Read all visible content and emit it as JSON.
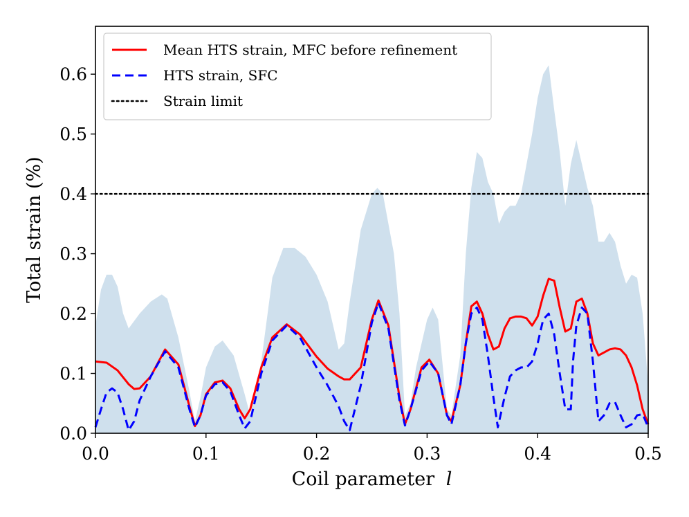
{
  "chart_data": {
    "type": "line",
    "title": "",
    "xlabel": "Coil parameter",
    "xlabel_var": "l",
    "ylabel": "Total strain (%)",
    "xlim": [
      0.0,
      0.5
    ],
    "ylim": [
      0.0,
      0.68
    ],
    "xticks": [
      0.0,
      0.1,
      0.2,
      0.3,
      0.4,
      0.5
    ],
    "xtick_labels": [
      "0.0",
      "0.1",
      "0.2",
      "0.3",
      "0.4",
      "0.5"
    ],
    "yticks": [
      0.0,
      0.1,
      0.2,
      0.3,
      0.4,
      0.5,
      0.6
    ],
    "ytick_labels": [
      "0.0",
      "0.1",
      "0.2",
      "0.3",
      "0.4",
      "0.5",
      "0.6"
    ],
    "grid": false,
    "legend_position": "top-left",
    "series": [
      {
        "name": "Mean HTS strain, MFC before refinement",
        "style": "solid",
        "color": "#ff0000",
        "x": [
          0.0,
          0.01,
          0.02,
          0.03,
          0.035,
          0.04,
          0.05,
          0.063,
          0.075,
          0.085,
          0.09,
          0.095,
          0.1,
          0.108,
          0.115,
          0.122,
          0.13,
          0.135,
          0.14,
          0.15,
          0.16,
          0.173,
          0.185,
          0.2,
          0.21,
          0.22,
          0.225,
          0.23,
          0.24,
          0.25,
          0.256,
          0.265,
          0.275,
          0.28,
          0.285,
          0.295,
          0.302,
          0.31,
          0.318,
          0.322,
          0.33,
          0.335,
          0.34,
          0.345,
          0.35,
          0.355,
          0.36,
          0.365,
          0.37,
          0.375,
          0.38,
          0.385,
          0.39,
          0.395,
          0.4,
          0.405,
          0.41,
          0.415,
          0.42,
          0.425,
          0.43,
          0.435,
          0.44,
          0.445,
          0.45,
          0.455,
          0.46,
          0.465,
          0.47,
          0.475,
          0.48,
          0.485,
          0.49,
          0.495,
          0.5
        ],
        "y": [
          0.12,
          0.118,
          0.105,
          0.082,
          0.074,
          0.075,
          0.095,
          0.14,
          0.115,
          0.045,
          0.012,
          0.03,
          0.065,
          0.085,
          0.088,
          0.075,
          0.04,
          0.025,
          0.04,
          0.11,
          0.16,
          0.182,
          0.165,
          0.128,
          0.108,
          0.095,
          0.09,
          0.09,
          0.11,
          0.19,
          0.222,
          0.18,
          0.06,
          0.015,
          0.04,
          0.11,
          0.123,
          0.1,
          0.03,
          0.02,
          0.08,
          0.15,
          0.212,
          0.22,
          0.2,
          0.165,
          0.14,
          0.145,
          0.175,
          0.192,
          0.195,
          0.195,
          0.192,
          0.18,
          0.195,
          0.23,
          0.258,
          0.255,
          0.21,
          0.17,
          0.175,
          0.22,
          0.225,
          0.2,
          0.15,
          0.13,
          0.135,
          0.14,
          0.142,
          0.14,
          0.13,
          0.11,
          0.08,
          0.04,
          0.015
        ]
      },
      {
        "name": "HTS strain, SFC",
        "style": "dashed",
        "color": "#0000ff",
        "x": [
          0.0,
          0.005,
          0.01,
          0.015,
          0.02,
          0.025,
          0.03,
          0.035,
          0.04,
          0.05,
          0.063,
          0.075,
          0.085,
          0.09,
          0.095,
          0.1,
          0.108,
          0.115,
          0.122,
          0.13,
          0.135,
          0.14,
          0.15,
          0.16,
          0.173,
          0.185,
          0.2,
          0.21,
          0.22,
          0.225,
          0.23,
          0.24,
          0.25,
          0.256,
          0.265,
          0.275,
          0.28,
          0.285,
          0.295,
          0.302,
          0.31,
          0.318,
          0.322,
          0.33,
          0.335,
          0.34,
          0.345,
          0.35,
          0.355,
          0.36,
          0.364,
          0.37,
          0.375,
          0.38,
          0.385,
          0.39,
          0.395,
          0.4,
          0.405,
          0.41,
          0.415,
          0.42,
          0.425,
          0.43,
          0.432,
          0.435,
          0.44,
          0.445,
          0.45,
          0.455,
          0.46,
          0.465,
          0.47,
          0.475,
          0.48,
          0.485,
          0.49,
          0.495,
          0.5
        ],
        "y": [
          0.01,
          0.04,
          0.068,
          0.075,
          0.068,
          0.04,
          0.005,
          0.02,
          0.055,
          0.095,
          0.137,
          0.11,
          0.04,
          0.01,
          0.03,
          0.063,
          0.082,
          0.085,
          0.07,
          0.03,
          0.008,
          0.02,
          0.1,
          0.155,
          0.18,
          0.16,
          0.11,
          0.08,
          0.045,
          0.02,
          0.005,
          0.08,
          0.185,
          0.218,
          0.175,
          0.055,
          0.013,
          0.04,
          0.105,
          0.12,
          0.1,
          0.03,
          0.015,
          0.08,
          0.15,
          0.2,
          0.21,
          0.19,
          0.13,
          0.06,
          0.01,
          0.06,
          0.095,
          0.105,
          0.11,
          0.11,
          0.12,
          0.15,
          0.19,
          0.2,
          0.165,
          0.1,
          0.04,
          0.04,
          0.12,
          0.18,
          0.21,
          0.2,
          0.12,
          0.02,
          0.03,
          0.05,
          0.052,
          0.03,
          0.01,
          0.015,
          0.03,
          0.032,
          0.01
        ]
      },
      {
        "name": "Strain limit",
        "style": "dotted",
        "color": "#000000",
        "x": [
          0.0,
          0.5
        ],
        "y": [
          0.4,
          0.4
        ]
      }
    ],
    "band": {
      "name": "spread",
      "color": "#cfe0ed",
      "x": [
        0.0,
        0.005,
        0.01,
        0.015,
        0.02,
        0.025,
        0.03,
        0.04,
        0.05,
        0.06,
        0.065,
        0.075,
        0.085,
        0.09,
        0.095,
        0.1,
        0.108,
        0.115,
        0.125,
        0.135,
        0.14,
        0.15,
        0.16,
        0.17,
        0.18,
        0.19,
        0.2,
        0.21,
        0.215,
        0.22,
        0.225,
        0.23,
        0.24,
        0.25,
        0.255,
        0.26,
        0.27,
        0.275,
        0.28,
        0.285,
        0.29,
        0.3,
        0.305,
        0.31,
        0.318,
        0.322,
        0.33,
        0.335,
        0.34,
        0.345,
        0.35,
        0.355,
        0.36,
        0.365,
        0.37,
        0.375,
        0.38,
        0.385,
        0.39,
        0.395,
        0.4,
        0.405,
        0.41,
        0.415,
        0.42,
        0.425,
        0.43,
        0.435,
        0.44,
        0.445,
        0.45,
        0.455,
        0.46,
        0.465,
        0.47,
        0.475,
        0.48,
        0.485,
        0.49,
        0.495,
        0.5
      ],
      "upper": [
        0.18,
        0.24,
        0.265,
        0.265,
        0.245,
        0.2,
        0.175,
        0.2,
        0.22,
        0.232,
        0.225,
        0.16,
        0.07,
        0.02,
        0.06,
        0.11,
        0.145,
        0.155,
        0.13,
        0.065,
        0.03,
        0.12,
        0.26,
        0.31,
        0.31,
        0.295,
        0.265,
        0.22,
        0.18,
        0.14,
        0.15,
        0.22,
        0.34,
        0.4,
        0.41,
        0.4,
        0.3,
        0.2,
        0.03,
        0.05,
        0.11,
        0.19,
        0.21,
        0.19,
        0.04,
        0.03,
        0.13,
        0.3,
        0.41,
        0.47,
        0.46,
        0.42,
        0.4,
        0.35,
        0.37,
        0.38,
        0.38,
        0.4,
        0.45,
        0.5,
        0.56,
        0.6,
        0.615,
        0.54,
        0.47,
        0.38,
        0.45,
        0.49,
        0.45,
        0.41,
        0.38,
        0.32,
        0.32,
        0.335,
        0.32,
        0.28,
        0.25,
        0.265,
        0.26,
        0.2,
        0.08
      ]
    }
  }
}
